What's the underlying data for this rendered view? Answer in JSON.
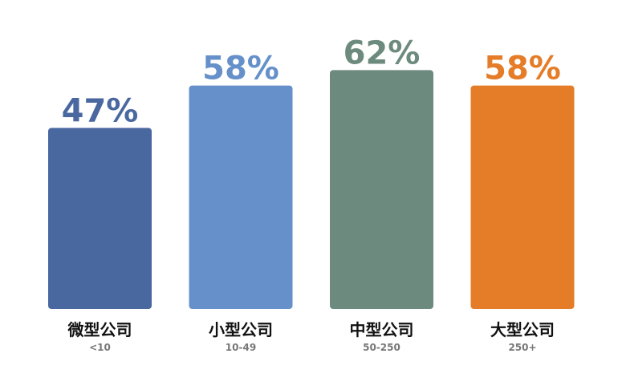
{
  "chart_data": {
    "type": "bar",
    "categories": [
      "微型公司",
      "小型公司",
      "中型公司",
      "大型公司"
    ],
    "category_ranges": [
      "<10",
      "10-49",
      "50-250",
      "250+"
    ],
    "values": [
      47,
      58,
      62,
      58
    ],
    "value_labels": [
      "47%",
      "58%",
      "62%",
      "58%"
    ],
    "colors": [
      "#4a68a0",
      "#6590c9",
      "#6c8a7d",
      "#e57c27"
    ]
  }
}
